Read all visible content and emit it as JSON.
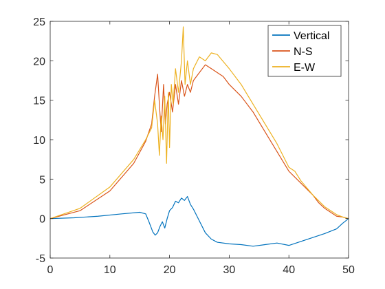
{
  "chart_data": {
    "type": "line",
    "xlim": [
      0,
      50
    ],
    "ylim": [
      -5,
      25
    ],
    "xticks": [
      "0",
      "10",
      "20",
      "30",
      "40",
      "50"
    ],
    "yticks": [
      "-5",
      "0",
      "5",
      "10",
      "15",
      "20",
      "25"
    ],
    "grid": false,
    "legend": {
      "position": "top-right"
    },
    "series": [
      {
        "name": "Vertical",
        "color": "#0072BD",
        "x": [
          0,
          4,
          8,
          12,
          15,
          16,
          16.6,
          17.2,
          17.6,
          18.0,
          18.4,
          18.8,
          19.2,
          19.6,
          20.0,
          20.5,
          21.0,
          21.5,
          22.0,
          22.5,
          23.0,
          23.5,
          24.0,
          25.0,
          26.0,
          27.0,
          28.0,
          30.0,
          32.0,
          34.0,
          36.0,
          38.0,
          40.0,
          42.0,
          44.0,
          46.0,
          48.0,
          49.0,
          50.0
        ],
        "y": [
          0.0,
          0.1,
          0.3,
          0.6,
          0.8,
          0.6,
          -0.5,
          -1.7,
          -2.1,
          -1.8,
          -1.0,
          -0.4,
          -1.2,
          0.0,
          1.0,
          1.4,
          2.2,
          2.0,
          2.6,
          2.3,
          2.8,
          1.8,
          1.2,
          -0.3,
          -1.8,
          -2.6,
          -3.0,
          -3.2,
          -3.3,
          -3.5,
          -3.3,
          -3.1,
          -3.4,
          -2.9,
          -2.4,
          -1.9,
          -1.3,
          -0.6,
          0.0
        ]
      },
      {
        "name": "N-S",
        "color": "#D95319",
        "x": [
          0,
          5,
          10,
          14,
          16,
          17,
          17.5,
          18.0,
          18.3,
          18.6,
          19.0,
          19.3,
          19.6,
          20.0,
          20.5,
          21.0,
          21.5,
          22.0,
          22.5,
          23.0,
          23.5,
          24.0,
          25.0,
          26.0,
          27.0,
          29.0,
          30.0,
          32.0,
          34.0,
          36.0,
          38.0,
          40.0,
          42.0,
          44.0,
          45.0,
          46.0,
          47.0,
          48.0,
          49.0,
          50.0
        ],
        "y": [
          0.0,
          1.0,
          3.5,
          7.0,
          9.8,
          12.0,
          15.5,
          18.3,
          14.5,
          11.0,
          17.0,
          12.0,
          14.5,
          16.0,
          13.5,
          17.0,
          14.5,
          17.5,
          15.5,
          17.0,
          16.0,
          17.5,
          18.5,
          19.5,
          19.0,
          18.0,
          17.0,
          15.5,
          13.5,
          11.0,
          8.5,
          6.0,
          4.5,
          3.0,
          2.0,
          1.3,
          0.8,
          0.3,
          0.2,
          0.0
        ]
      },
      {
        "name": "E-W",
        "color": "#EDB120",
        "x": [
          0,
          5,
          10,
          14,
          16,
          17,
          17.5,
          18.0,
          18.3,
          18.6,
          18.9,
          19.2,
          19.5,
          19.8,
          20.0,
          20.3,
          20.6,
          21.0,
          21.5,
          22.0,
          22.3,
          22.6,
          23.0,
          23.5,
          24.0,
          25.0,
          26.0,
          27.0,
          28.0,
          30.0,
          32.0,
          34.0,
          36.0,
          38.0,
          40.0,
          41.0,
          42.0,
          44.0,
          46.0,
          48.0,
          49.0,
          50.0
        ],
        "y": [
          0.0,
          1.3,
          4.0,
          7.5,
          10.0,
          11.5,
          15.0,
          12.0,
          8.0,
          13.0,
          10.0,
          15.5,
          7.0,
          16.0,
          9.0,
          17.0,
          14.5,
          19.0,
          16.0,
          20.0,
          24.3,
          17.0,
          20.0,
          17.0,
          19.0,
          20.5,
          20.0,
          21.0,
          20.8,
          19.0,
          17.0,
          14.5,
          12.0,
          9.5,
          6.5,
          6.0,
          4.8,
          3.0,
          1.5,
          0.5,
          0.2,
          0.0
        ]
      }
    ]
  }
}
